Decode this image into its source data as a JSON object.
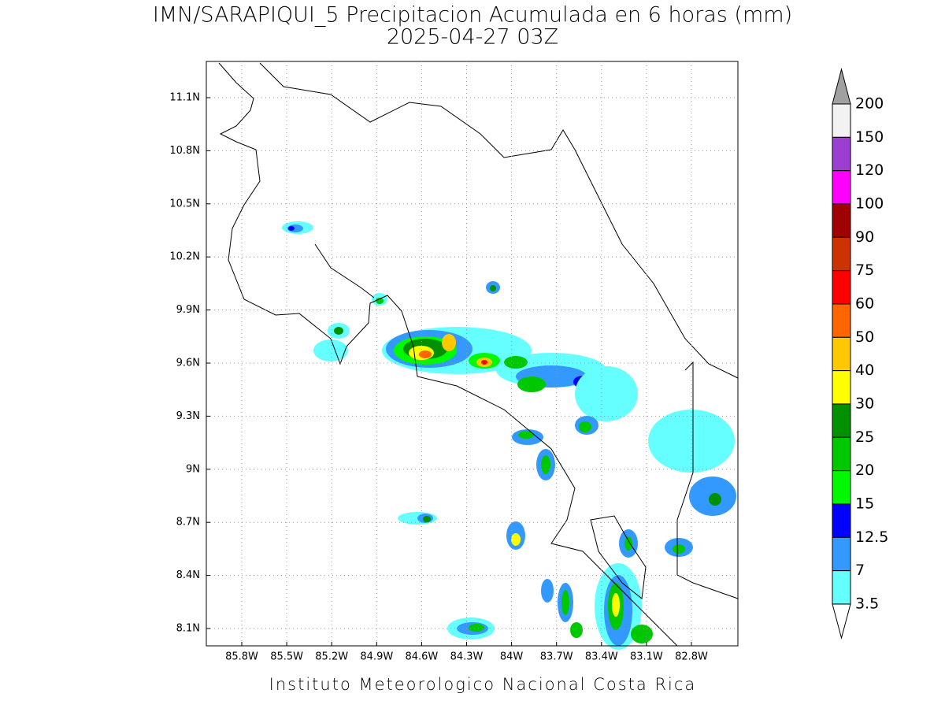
{
  "title": "IMN/SARAPIQUI_5 Precipitacion Acumulada en 6 horas (mm)",
  "subtitle": "2025-04-27 03Z",
  "lon_labels": [
    "85.8W",
    "85.5W",
    "85.2W",
    "84.9W",
    "84.6W",
    "84.3W",
    "84W",
    "83.7W",
    "83.4W",
    "83.1W",
    "82.8W"
  ],
  "lat_labels": [
    "11.1N",
    "10.8N",
    "10.5N",
    "10.2N",
    "9.9N",
    "9.6N",
    "9.3N",
    "9N",
    "8.7N",
    "8.4N",
    "8.1N"
  ],
  "legend": {
    "levels": [
      200,
      150,
      120,
      100,
      90,
      75,
      60,
      50,
      40,
      30,
      25,
      20,
      15,
      12.5,
      7,
      3.5
    ],
    "colors": [
      "#f2f2f2",
      "#9b3fd0",
      "#ff00ff",
      "#a00000",
      "#cc3300",
      "#ff0000",
      "#ff6600",
      "#ffc800",
      "#ffff00",
      "#009000",
      "#00c800",
      "#00f800",
      "#0000ff",
      "#3399ff",
      "#66ffff"
    ],
    "over_color": "#a0a0a0",
    "under_color": "#ffffff"
  },
  "footer": "Instituto Meteorologico Nacional Costa Rica"
}
